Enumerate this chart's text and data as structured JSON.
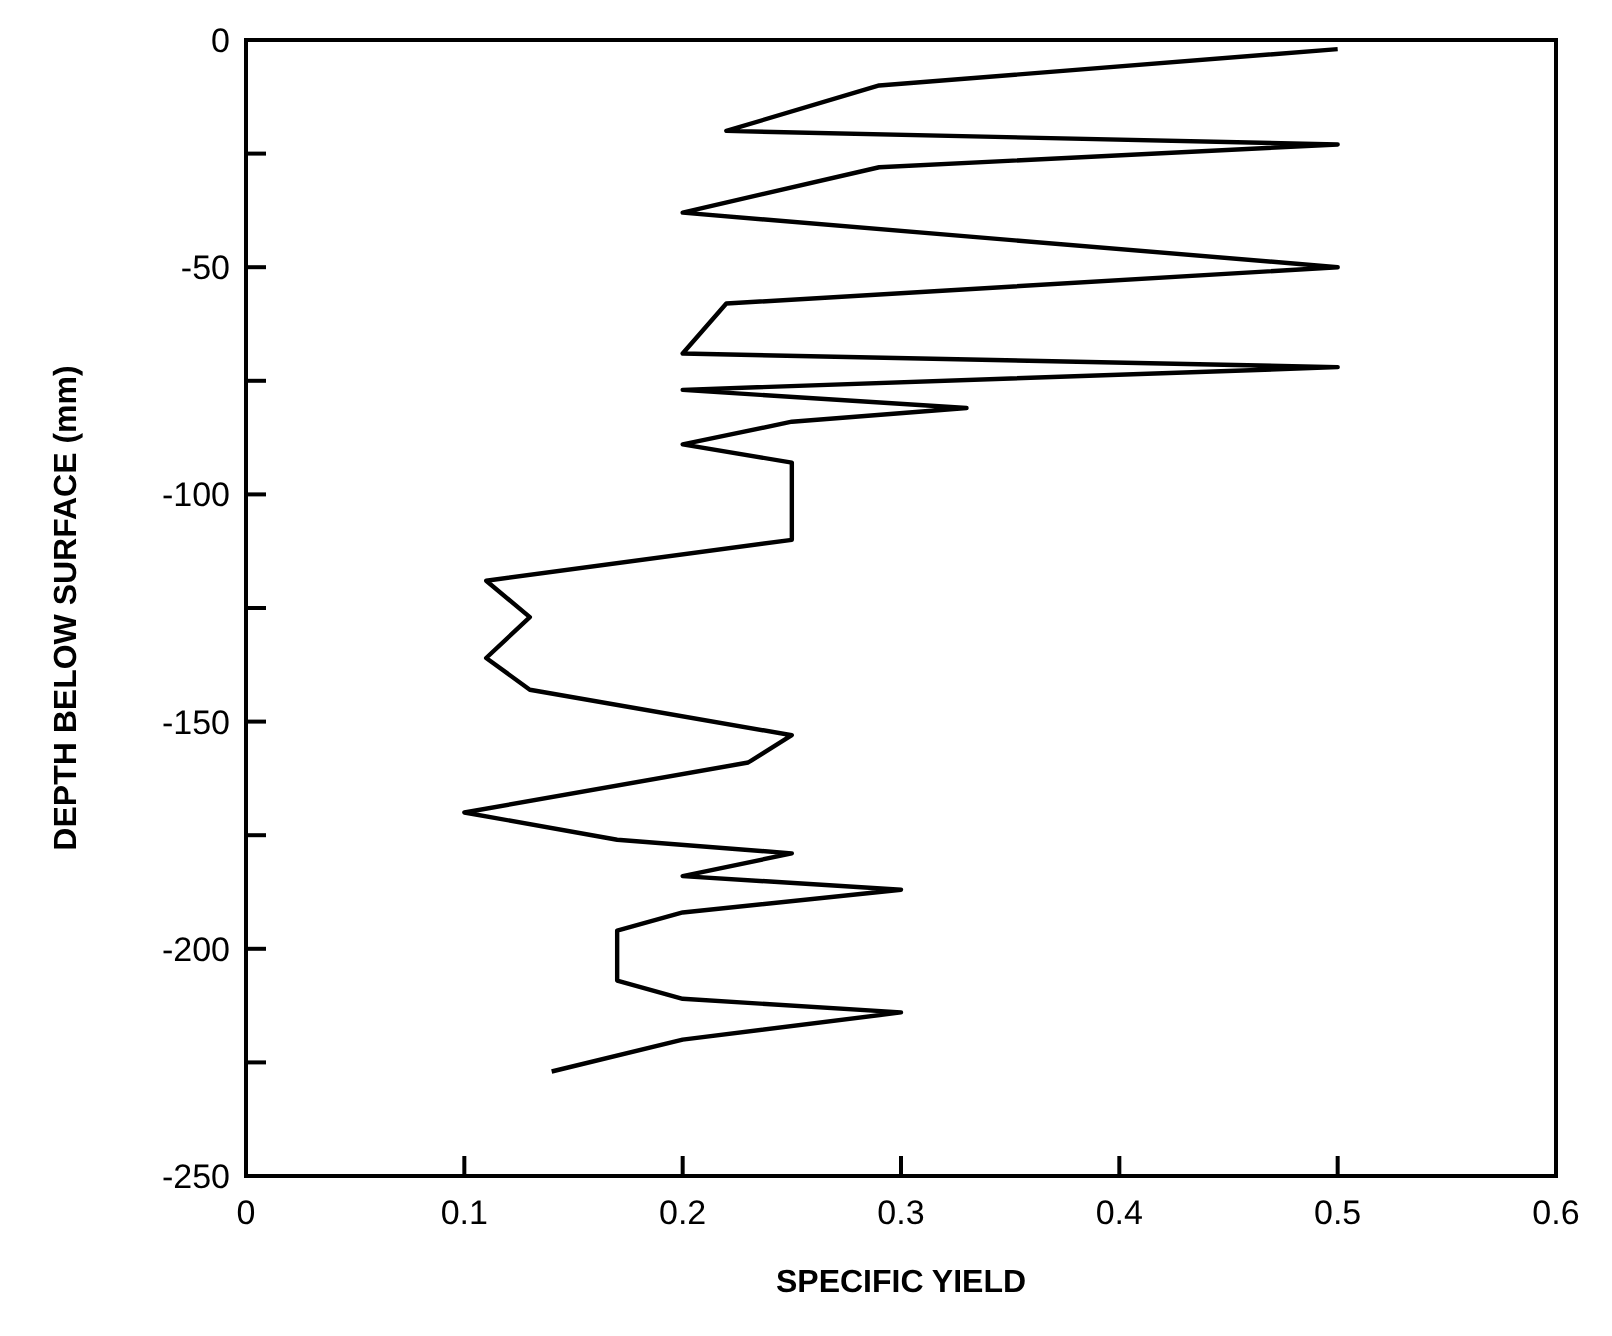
{
  "chart_data": {
    "type": "line",
    "xlabel": "SPECIFIC YIELD",
    "ylabel": "DEPTH BELOW SURFACE (mm)",
    "xlim": [
      0,
      0.6
    ],
    "xticks": [
      0,
      0.1,
      0.2,
      0.3,
      0.4,
      0.5,
      0.6
    ],
    "ylim": [
      -250,
      0
    ],
    "yticks": [
      -250,
      {
        "value": -225,
        "label": null
      },
      -200,
      {
        "value": -175,
        "label": null
      },
      -150,
      {
        "value": -125,
        "label": null
      },
      -100,
      {
        "value": -75,
        "label": null
      },
      -50,
      {
        "value": -25,
        "label": null
      },
      0
    ],
    "grid": false,
    "marker": "none",
    "line_style": "solid",
    "series": [
      {
        "color": "#000000",
        "x": [
          0.5,
          0.29,
          0.22,
          0.5,
          0.29,
          0.2,
          0.5,
          0.22,
          0.2,
          0.5,
          0.2,
          0.33,
          0.25,
          0.2,
          0.25,
          0.25,
          0.11,
          0.13,
          0.11,
          0.13,
          0.25,
          0.23,
          0.1,
          0.17,
          0.25,
          0.2,
          0.3,
          0.2,
          0.17,
          0.17,
          0.2,
          0.3,
          0.2,
          0.14
        ],
        "values": [
          -2,
          -10,
          -20,
          -23,
          -28,
          -38,
          -50,
          -58,
          -69,
          -72,
          -77,
          -81,
          -84,
          -89,
          -93,
          -110,
          -119,
          -127,
          -136,
          -143,
          -153,
          -159,
          -170,
          -176,
          -179,
          -184,
          -187,
          -192,
          -196,
          -207,
          -211,
          -214,
          -220,
          -227
        ]
      }
    ]
  }
}
